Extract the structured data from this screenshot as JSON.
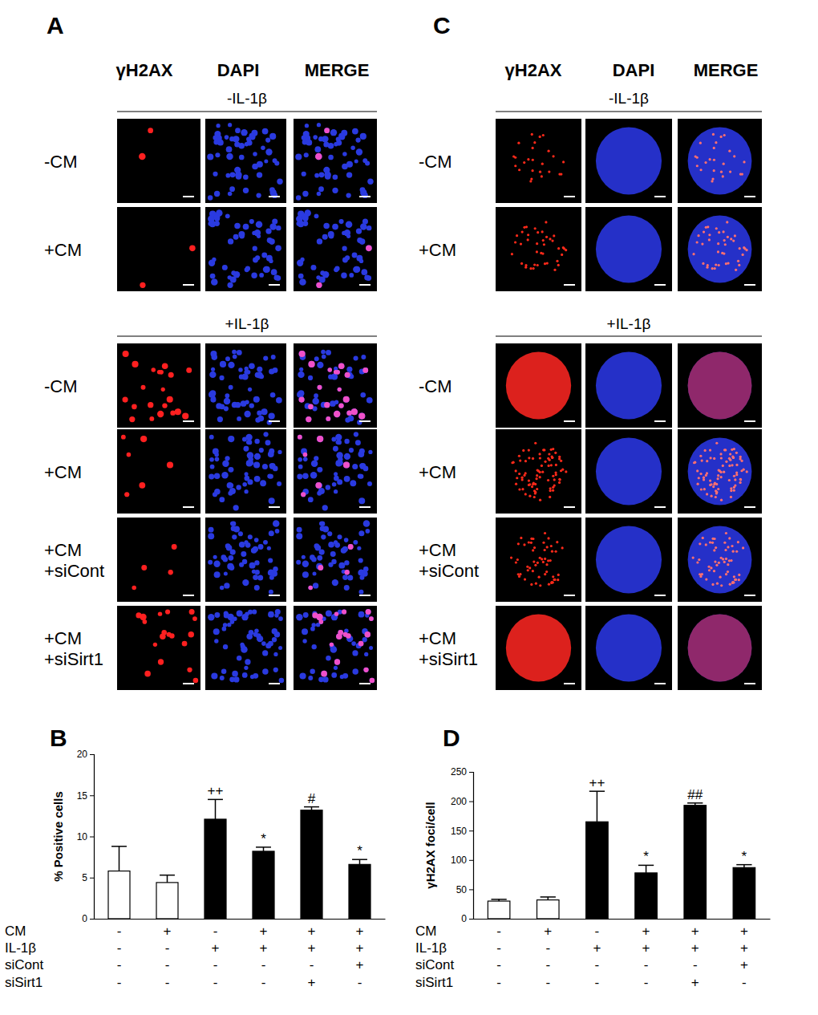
{
  "chart_data": [
    {
      "type": "bar",
      "title": "B",
      "y_label": "% Positive cells",
      "categories": [
        null,
        null,
        null,
        null,
        null,
        null
      ],
      "values": [
        5.8,
        4.4,
        12.1,
        8.2,
        13.2,
        6.6
      ],
      "errors": [
        3.0,
        0.9,
        2.4,
        0.5,
        0.4,
        0.6
      ],
      "annotations": [
        null,
        null,
        "++",
        "*",
        "#",
        "*"
      ],
      "colors": [
        "#ffffff",
        "#ffffff",
        "#000000",
        "#000000",
        "#000000",
        "#000000"
      ],
      "ylim": [
        0,
        20
      ],
      "yticks": [
        0,
        5,
        10,
        15,
        20
      ],
      "conditions": [
        {
          "name": "CM",
          "values": [
            "-",
            "+",
            "-",
            "+",
            "+",
            "+"
          ]
        },
        {
          "name": "IL-1β",
          "values": [
            "-",
            "-",
            "+",
            "+",
            "+",
            "+"
          ]
        },
        {
          "name": "siCont",
          "values": [
            "-",
            "-",
            "-",
            "-",
            "-",
            "+"
          ]
        },
        {
          "name": "siSirt1",
          "values": [
            "-",
            "-",
            "-",
            "-",
            "+",
            "-"
          ]
        }
      ]
    },
    {
      "type": "bar",
      "title": "D",
      "y_label": "γH2AX foci/cell",
      "categories": [
        null,
        null,
        null,
        null,
        null,
        null
      ],
      "values": [
        30,
        32,
        165,
        78,
        193,
        87
      ],
      "errors": [
        3,
        5,
        52,
        13,
        4,
        5
      ],
      "annotations": [
        null,
        null,
        "++",
        "*",
        "##",
        "*"
      ],
      "colors": [
        "#ffffff",
        "#ffffff",
        "#000000",
        "#000000",
        "#000000",
        "#000000"
      ],
      "ylim": [
        0,
        250
      ],
      "yticks": [
        0,
        50,
        100,
        150,
        200,
        250
      ],
      "conditions": [
        {
          "name": "CM",
          "values": [
            "-",
            "+",
            "-",
            "+",
            "+",
            "+"
          ]
        },
        {
          "name": "IL-1β",
          "values": [
            "-",
            "-",
            "+",
            "+",
            "+",
            "+"
          ]
        },
        {
          "name": "siCont",
          "values": [
            "-",
            "-",
            "-",
            "-",
            "-",
            "+"
          ]
        },
        {
          "name": "siSirt1",
          "values": [
            "-",
            "-",
            "-",
            "-",
            "+",
            "-"
          ]
        }
      ]
    }
  ],
  "image_panels": [
    {
      "label": "A",
      "columns": [
        "γH2AX",
        "DAPI",
        "MERGE"
      ],
      "groups": [
        {
          "header": "-IL-1β",
          "rows": [
            [
              "-CM"
            ],
            [
              "+CM"
            ]
          ]
        },
        {
          "header": "+IL-1β",
          "rows": [
            [
              "-CM"
            ],
            [
              "+CM"
            ],
            [
              "+CM",
              "+siCont"
            ],
            [
              "+CM",
              "+siSirt1"
            ]
          ]
        }
      ]
    },
    {
      "label": "C",
      "columns": [
        "γH2AX",
        "DAPI",
        "MERGE"
      ],
      "groups": [
        {
          "header": "-IL-1β",
          "rows": [
            [
              "-CM"
            ],
            [
              "+CM"
            ]
          ]
        },
        {
          "header": "+IL-1β",
          "rows": [
            [
              "-CM"
            ],
            [
              "+CM"
            ],
            [
              "+CM",
              "+siCont"
            ],
            [
              "+CM",
              "+siSirt1"
            ]
          ]
        }
      ]
    }
  ]
}
